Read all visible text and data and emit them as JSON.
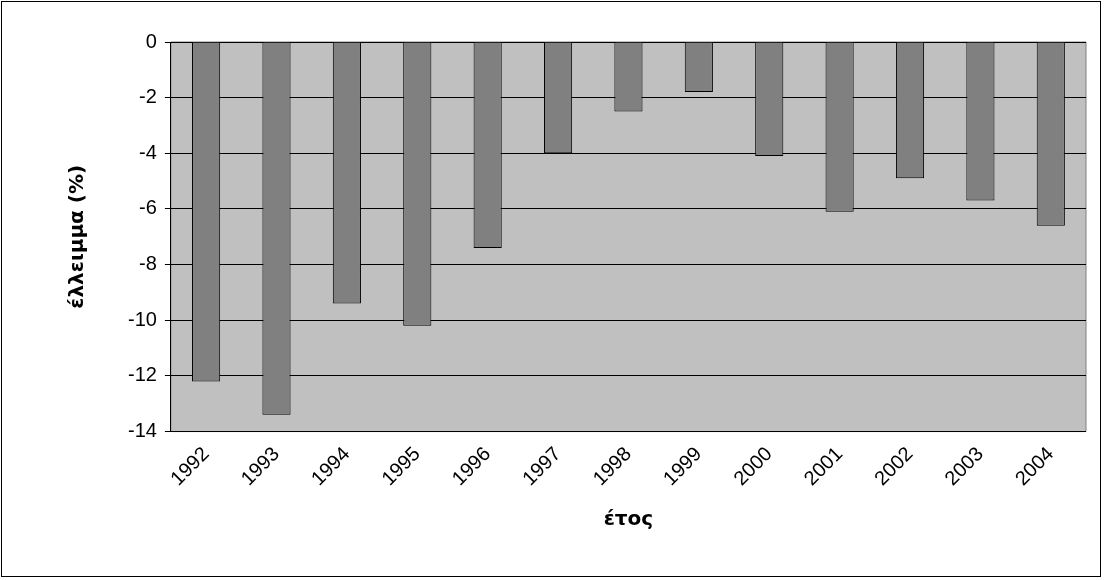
{
  "chart_data": {
    "type": "bar",
    "categories": [
      "1992",
      "1993",
      "1994",
      "1995",
      "1996",
      "1997",
      "1998",
      "1999",
      "2000",
      "2001",
      "2002",
      "2003",
      "2004"
    ],
    "values": [
      -12.2,
      -13.4,
      -9.4,
      -10.2,
      -7.4,
      -4.0,
      -2.5,
      -1.8,
      -4.1,
      -6.1,
      -4.9,
      -5.7,
      -6.6
    ],
    "color": "#808080",
    "xlabel": "έτος",
    "ylabel": "έλλειμμα (%)",
    "ylim": [
      -14,
      0
    ],
    "yticks": [
      -14,
      -12,
      -10,
      -8,
      -6,
      -4,
      -2,
      0
    ],
    "grid": "y",
    "legend": false
  }
}
